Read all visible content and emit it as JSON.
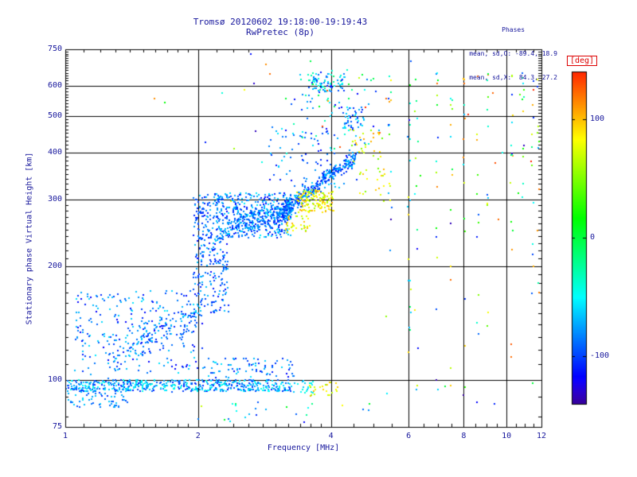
{
  "chart_data": {
    "type": "scatter",
    "title": "Tromsø 20120602 19:18:00-19:19:43",
    "subtitle": "RwPretec (8p)",
    "stats": {
      "heading": "Phases",
      "o_line": "mean, sd,O: -89.4, 18.9",
      "x_line": "mean, sd,X:  84.3, 27.2"
    },
    "xlabel": "Frequency [MHz]",
    "ylabel": "Stationary phase Virtual Height [km]",
    "x_scale": "log",
    "y_scale": "log",
    "xlim": [
      1,
      12
    ],
    "ylim": [
      75,
      750
    ],
    "x_ticks": [
      1,
      2,
      4,
      6,
      8,
      10,
      12
    ],
    "y_ticks": [
      750,
      600,
      500,
      400,
      300,
      200,
      100,
      75
    ],
    "x_gridlines": [
      2,
      4,
      6,
      8,
      10
    ],
    "y_gridlines": [
      100,
      200,
      300,
      400,
      500,
      600
    ],
    "grid": true,
    "colorbar": {
      "label": "[deg]",
      "tick_values": [
        100,
        0,
        -100
      ],
      "tick_labels": [
        "100",
        "0",
        "-100"
      ],
      "range": [
        -140,
        140
      ],
      "position": "right"
    },
    "point_color_meaning": "phase in degrees, rainbow: red=+140, yellow=+90, green=0, blue=-90, violet/black=-140",
    "clusters": [
      {
        "name": "e-region-band",
        "mode": "box",
        "x": [
          1.0,
          3.25
        ],
        "y": [
          93,
          100
        ],
        "n": 520,
        "phase": [
          -110,
          -40
        ]
      },
      {
        "name": "e-band-left-low",
        "mode": "box",
        "x": [
          1.0,
          1.4
        ],
        "y": [
          84,
          96
        ],
        "n": 70,
        "phase": [
          -105,
          -55
        ]
      },
      {
        "name": "e-band-upper-row",
        "mode": "box",
        "x": [
          2.05,
          3.3
        ],
        "y": [
          101,
          114
        ],
        "n": 80,
        "phase": [
          -115,
          -55
        ]
      },
      {
        "name": "low-left-diffuse",
        "mode": "box",
        "x": [
          1.05,
          2.05
        ],
        "y": [
          103,
          172
        ],
        "n": 240,
        "phase": [
          -120,
          -55
        ]
      },
      {
        "name": "low-rising-trend",
        "mode": "line",
        "x": [
          1.25,
          2.0
        ],
        "y": [
          112,
          150
        ],
        "jy": 16,
        "n": 150,
        "phase": [
          -110,
          -60
        ]
      },
      {
        "name": "cusp-column",
        "mode": "box",
        "x": [
          1.95,
          2.35
        ],
        "y": [
          150,
          310
        ],
        "n": 320,
        "phase": [
          -115,
          -65
        ]
      },
      {
        "name": "f-region-slab",
        "mode": "box",
        "x": [
          2.2,
          3.25
        ],
        "y": [
          238,
          312
        ],
        "n": 400,
        "phase": [
          -115,
          -55
        ]
      },
      {
        "name": "f-slab-core",
        "mode": "line",
        "x": [
          2.45,
          3.3
        ],
        "y": [
          255,
          285
        ],
        "jy": 22,
        "n": 180,
        "phase": [
          -110,
          -60
        ]
      },
      {
        "name": "f-trace-rising",
        "mode": "line",
        "x": [
          3.0,
          4.55
        ],
        "y": [
          262,
          388
        ],
        "jy": 20,
        "n": 320,
        "phase": [
          -115,
          -60
        ]
      },
      {
        "name": "x-mode-patch",
        "mode": "box",
        "x": [
          3.35,
          4.05
        ],
        "y": [
          278,
          318
        ],
        "n": 140,
        "phase": [
          55,
          110
        ]
      },
      {
        "name": "x-mode-lower",
        "mode": "box",
        "x": [
          3.15,
          3.6
        ],
        "y": [
          246,
          272
        ],
        "n": 35,
        "phase": [
          55,
          105
        ]
      },
      {
        "name": "x-mode-e-band",
        "mode": "box",
        "x": [
          3.55,
          4.15
        ],
        "y": [
          90,
          99
        ],
        "n": 25,
        "phase": [
          55,
          110
        ]
      },
      {
        "name": "cyan-e-extension",
        "mode": "box",
        "x": [
          3.25,
          3.65
        ],
        "y": [
          92,
          100
        ],
        "n": 20,
        "phase": [
          -70,
          -40
        ]
      },
      {
        "name": "mid-sparse",
        "mode": "box",
        "x": [
          2.9,
          4.6
        ],
        "y": [
          318,
          470
        ],
        "n": 85,
        "phase": [
          -120,
          -50
        ]
      },
      {
        "name": "upper-blob-high",
        "mode": "box",
        "x": [
          3.55,
          4.35
        ],
        "y": [
          580,
          648
        ],
        "n": 85,
        "phase": [
          -110,
          -20
        ]
      },
      {
        "name": "upper-blob-mid",
        "mode": "box",
        "x": [
          4.25,
          4.75
        ],
        "y": [
          462,
          528
        ],
        "n": 45,
        "phase": [
          -110,
          -50
        ]
      },
      {
        "name": "upper-sparse",
        "mode": "box",
        "x": [
          3.1,
          5.15
        ],
        "y": [
          390,
          665
        ],
        "n": 70,
        "phase": [
          -120,
          10
        ]
      },
      {
        "name": "yellow-upper",
        "mode": "box",
        "x": [
          4.4,
          5.25
        ],
        "y": [
          378,
          462
        ],
        "n": 28,
        "phase": [
          45,
          110
        ]
      },
      {
        "name": "yellow-mid-right",
        "mode": "box",
        "x": [
          4.6,
          5.45
        ],
        "y": [
          295,
          365
        ],
        "n": 22,
        "phase": [
          40,
          110
        ]
      },
      {
        "name": "bottom-sparse",
        "mode": "box",
        "x": [
          2.0,
          5.0
        ],
        "y": [
          77,
          90
        ],
        "n": 25,
        "phase": [
          -120,
          90
        ]
      },
      {
        "name": "rfi-5p45",
        "mode": "box",
        "x": [
          5.4,
          5.5
        ],
        "y": [
          85,
          655
        ],
        "n": 16,
        "phase": [
          -140,
          130
        ]
      },
      {
        "name": "rfi-6p0",
        "mode": "box",
        "x": [
          5.98,
          6.06
        ],
        "y": [
          85,
          655
        ],
        "n": 18,
        "phase": [
          -140,
          130
        ]
      },
      {
        "name": "rfi-6p25",
        "mode": "box",
        "x": [
          6.2,
          6.3
        ],
        "y": [
          85,
          655
        ],
        "n": 14,
        "phase": [
          -140,
          130
        ]
      },
      {
        "name": "rfi-6p95",
        "mode": "box",
        "x": [
          6.9,
          7.0
        ],
        "y": [
          85,
          655
        ],
        "n": 16,
        "phase": [
          -140,
          130
        ]
      },
      {
        "name": "rfi-7p5",
        "mode": "box",
        "x": [
          7.45,
          7.55
        ],
        "y": [
          85,
          655
        ],
        "n": 14,
        "phase": [
          -140,
          130
        ]
      },
      {
        "name": "rfi-8p0",
        "mode": "box",
        "x": [
          7.97,
          8.06
        ],
        "y": [
          85,
          655
        ],
        "n": 16,
        "phase": [
          -140,
          130
        ]
      },
      {
        "name": "rfi-8p6",
        "mode": "box",
        "x": [
          8.55,
          8.65
        ],
        "y": [
          85,
          655
        ],
        "n": 12,
        "phase": [
          -140,
          130
        ]
      },
      {
        "name": "rfi-9p05",
        "mode": "box",
        "x": [
          9.0,
          9.1
        ],
        "y": [
          85,
          655
        ],
        "n": 12,
        "phase": [
          -140,
          130
        ]
      },
      {
        "name": "rfi-10p3",
        "mode": "box",
        "x": [
          10.25,
          10.35
        ],
        "y": [
          85,
          655
        ],
        "n": 14,
        "phase": [
          -140,
          130
        ]
      },
      {
        "name": "rfi-10p9",
        "mode": "box",
        "x": [
          10.85,
          10.95
        ],
        "y": [
          85,
          655
        ],
        "n": 12,
        "phase": [
          -140,
          130
        ]
      },
      {
        "name": "rfi-11p45",
        "mode": "box",
        "x": [
          11.4,
          11.5
        ],
        "y": [
          85,
          655
        ],
        "n": 12,
        "phase": [
          -140,
          130
        ]
      },
      {
        "name": "rfi-11p8",
        "mode": "box",
        "x": [
          11.75,
          11.85
        ],
        "y": [
          85,
          655
        ],
        "n": 10,
        "phase": [
          -140,
          130
        ]
      },
      {
        "name": "red-outliers",
        "mode": "box",
        "x": [
          3.5,
          11.8
        ],
        "y": [
          290,
          660
        ],
        "n": 10,
        "phase": [
          120,
          150
        ]
      },
      {
        "name": "random-sparse",
        "mode": "box",
        "x": [
          1.5,
          11.9
        ],
        "y": [
          76,
          740
        ],
        "n": 35,
        "phase": [
          -150,
          150
        ]
      }
    ]
  },
  "colors": {
    "text": "#16169c",
    "axis": "#000000",
    "deg_label": "#dd0000",
    "background": "#ffffff"
  }
}
